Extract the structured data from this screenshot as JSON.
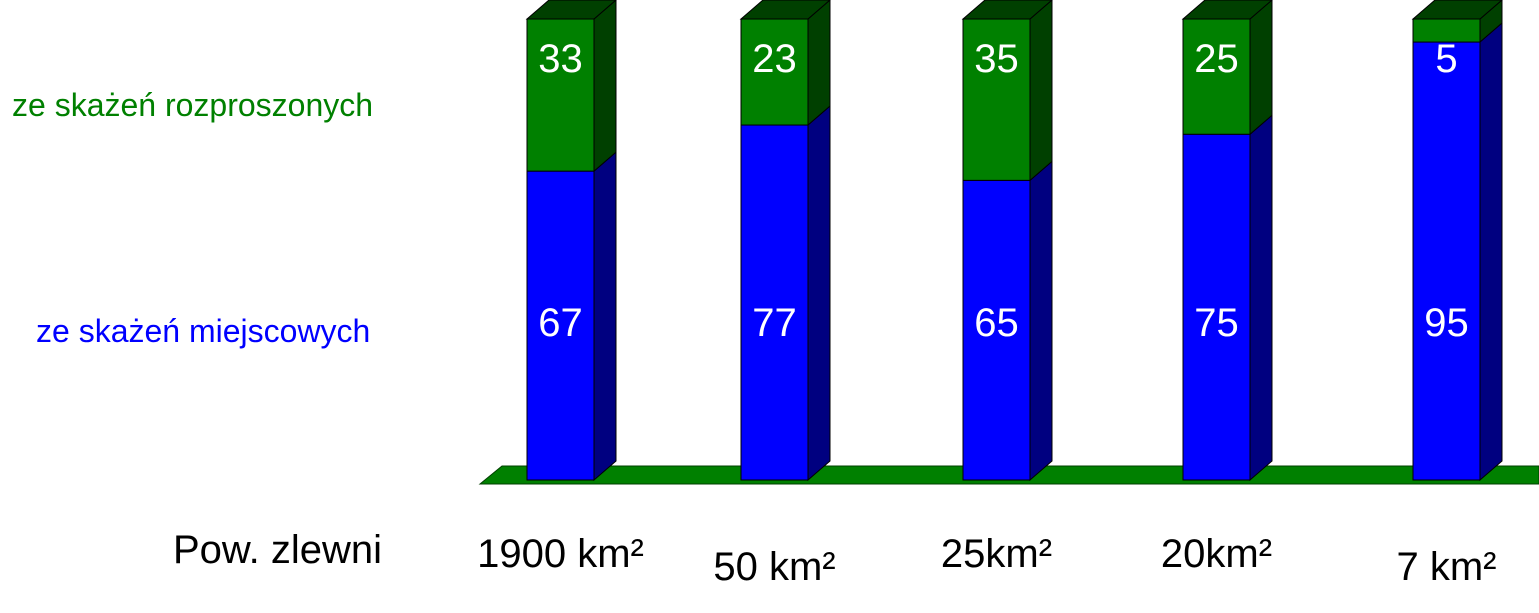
{
  "chart_data": {
    "type": "bar",
    "stacked": true,
    "three_d": true,
    "categories": [
      "1900 km²",
      "50 km²",
      "25km²",
      "20km²",
      "7 km²"
    ],
    "series": [
      {
        "name": "ze skażeń miejscowych",
        "values": [
          67,
          77,
          65,
          75,
          95
        ],
        "color": "#0000ff",
        "side_color": "#000080"
      },
      {
        "name": "ze skażeń rozproszonych",
        "values": [
          33,
          23,
          35,
          25,
          5
        ],
        "color": "#008000",
        "side_color": "#004000"
      }
    ],
    "xlabel": "Pow. zlewni",
    "ylim": [
      0,
      100
    ],
    "floor_color": "#008000",
    "grid": false,
    "legend": "left"
  }
}
